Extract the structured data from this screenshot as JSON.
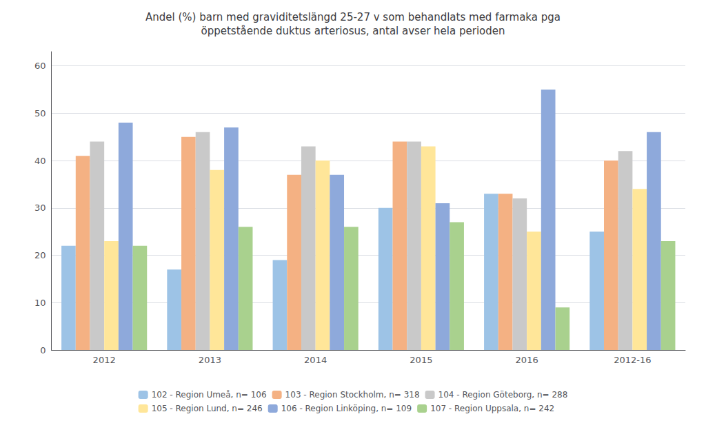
{
  "chart_data": {
    "type": "bar",
    "title": "Andel (%) barn med graviditetslängd 25-27 v som behandlats med farmaka pga\nöppetstående duktus arteriosus, antal avser hela perioden",
    "categories": [
      "2012",
      "2013",
      "2014",
      "2015",
      "2016",
      "2012-16"
    ],
    "series": [
      {
        "name": "102 - Region Umeå, n= 106",
        "color": "#9DC3E6",
        "values": [
          22,
          17,
          19,
          30,
          33,
          25
        ]
      },
      {
        "name": "103 - Region Stockholm, n= 318",
        "color": "#F4B183",
        "values": [
          41,
          45,
          37,
          44,
          33,
          40
        ]
      },
      {
        "name": "104 - Region Göteborg, n= 288",
        "color": "#C9C9C9",
        "values": [
          44,
          46,
          43,
          44,
          32,
          42
        ]
      },
      {
        "name": "105 - Region Lund, n= 246",
        "color": "#FFE699",
        "values": [
          23,
          38,
          40,
          43,
          25,
          34
        ]
      },
      {
        "name": "106 - Region Linköping, n= 109",
        "color": "#8EA9DB",
        "values": [
          48,
          47,
          37,
          31,
          55,
          46
        ]
      },
      {
        "name": "107 - Region Uppsala, n= 242",
        "color": "#A9D18E",
        "values": [
          22,
          26,
          26,
          27,
          9,
          23
        ]
      }
    ],
    "ylim": [
      0,
      63
    ],
    "yticks": [
      0,
      10,
      20,
      30,
      40,
      50,
      60
    ],
    "grid": true,
    "legend": "bottom"
  }
}
